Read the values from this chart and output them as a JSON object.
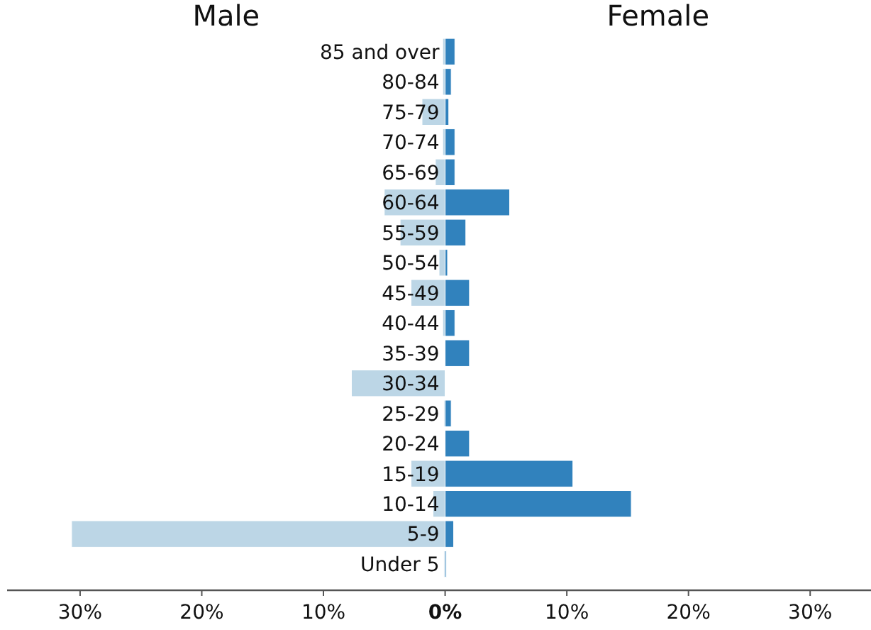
{
  "chart_data": {
    "type": "bar",
    "orientation": "horizontal",
    "grid": false,
    "annotations": [
      "Male",
      "Female"
    ],
    "categories": [
      "85 and over",
      "80-84",
      "75-79",
      "70-74",
      "65-69",
      "60-64",
      "55-59",
      "50-54",
      "45-49",
      "40-44",
      "35-39",
      "30-34",
      "25-29",
      "20-24",
      "15-19",
      "10-14",
      "5-9",
      "Under 5"
    ],
    "series": [
      {
        "color": "#bcd6e6",
        "values": [
          -0.2,
          -0.2,
          -1.9,
          -0.2,
          -0.8,
          -5,
          -3.7,
          -0.5,
          -2.8,
          -0.2,
          0,
          -7.7,
          -0.1,
          0,
          -2.8,
          -1,
          -30.7,
          -0.1
        ]
      },
      {
        "color": "#3182bd",
        "values": [
          0.8,
          0.5,
          0.3,
          0.8,
          0.8,
          5.3,
          1.7,
          0.2,
          2,
          0.8,
          2,
          0,
          0.5,
          2,
          10.5,
          15.3,
          0.7,
          0.1
        ]
      }
    ],
    "xlim": [
      -36,
      35
    ],
    "xticks": [
      {
        "value": -30,
        "label": "30%"
      },
      {
        "value": -20,
        "label": "20%"
      },
      {
        "value": -10,
        "label": "10%"
      },
      {
        "value": 0,
        "label": "0%"
      },
      {
        "value": 10,
        "label": "10%"
      },
      {
        "value": 20,
        "label": "20%"
      },
      {
        "value": 30,
        "label": "30%"
      }
    ]
  }
}
